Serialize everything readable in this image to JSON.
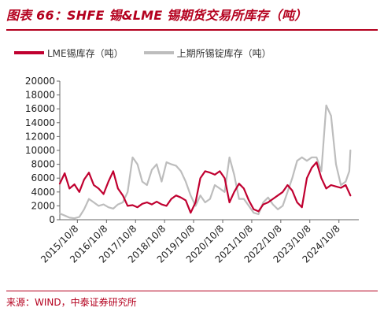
{
  "title": "图表 66：SHFE 锡&LME 锡期货交易所库存（吨）",
  "source": "来源：WIND，中泰证券研究所",
  "chart_data": {
    "type": "line",
    "title": "",
    "ylim": [
      0,
      20000
    ],
    "yticks": [
      0,
      2000,
      4000,
      6000,
      8000,
      10000,
      12000,
      14000,
      16000,
      18000,
      20000
    ],
    "yticklabels": [
      "0",
      "2000",
      "4000",
      "6000",
      "8000",
      "10000",
      "12000",
      "14000",
      "16000",
      "18000",
      "20000"
    ],
    "xlim": [
      "2015-03-01",
      "2025-06-15"
    ],
    "xticks": [
      "2015-10-08",
      "2016-10-08",
      "2017-10-08",
      "2018-10-08",
      "2019-10-08",
      "2020-10-08",
      "2021-10-08",
      "2022-10-08",
      "2023-10-08",
      "2024-10-08"
    ],
    "xticklabels": [
      "2015/10/8",
      "2016/10/8",
      "2017/10/8",
      "2018/10/8",
      "2019/10/8",
      "2020/10/8",
      "2021/10/8",
      "2022/10/8",
      "2023/10/8",
      "2024/10/8"
    ],
    "grid": false,
    "legend_position": "top",
    "series": [
      {
        "name": "LME锡库存（吨）",
        "color": "#c00030",
        "x": [
          "2015-03-01",
          "2015-05-01",
          "2015-07-01",
          "2015-09-01",
          "2015-11-01",
          "2016-01-01",
          "2016-03-01",
          "2016-05-01",
          "2016-07-01",
          "2016-09-01",
          "2016-11-01",
          "2017-01-01",
          "2017-03-01",
          "2017-05-01",
          "2017-07-01",
          "2017-09-01",
          "2017-11-01",
          "2018-01-01",
          "2018-03-01",
          "2018-05-01",
          "2018-07-01",
          "2018-09-01",
          "2018-11-01",
          "2019-01-01",
          "2019-03-01",
          "2019-05-01",
          "2019-07-01",
          "2019-09-01",
          "2019-11-01",
          "2020-01-01",
          "2020-03-01",
          "2020-05-01",
          "2020-07-01",
          "2020-09-01",
          "2020-11-01",
          "2021-01-01",
          "2021-03-01",
          "2021-05-01",
          "2021-07-01",
          "2021-09-01",
          "2021-11-01",
          "2022-01-01",
          "2022-03-01",
          "2022-05-01",
          "2022-07-01",
          "2022-09-01",
          "2022-11-01",
          "2023-01-01",
          "2023-03-01",
          "2023-05-01",
          "2023-07-01",
          "2023-09-01",
          "2023-11-01",
          "2024-01-01",
          "2024-03-01",
          "2024-05-01",
          "2024-07-01",
          "2024-09-01",
          "2024-11-01",
          "2025-01-01",
          "2025-03-01"
        ],
        "values": [
          5200,
          6700,
          4500,
          5100,
          4000,
          5800,
          6800,
          5000,
          4500,
          3700,
          5500,
          7000,
          4500,
          3500,
          2000,
          2100,
          1800,
          2300,
          2500,
          2200,
          2600,
          2200,
          2000,
          3000,
          3500,
          3200,
          2800,
          1000,
          2500,
          6000,
          7000,
          6800,
          6500,
          7000,
          6000,
          2500,
          4000,
          5200,
          4500,
          2800,
          1500,
          1200,
          2200,
          2500,
          3000,
          3500,
          4000,
          5000,
          4200,
          2500,
          1800,
          6000,
          7500,
          8300,
          6000,
          4500,
          5000,
          4800,
          4600,
          5000,
          3500
        ]
      },
      {
        "name": "上期所锡锭库存（吨）",
        "color": "#bdbdbd",
        "x": [
          "2015-03-01",
          "2015-05-01",
          "2015-07-01",
          "2015-09-01",
          "2015-11-01",
          "2016-01-01",
          "2016-03-01",
          "2016-05-01",
          "2016-07-01",
          "2016-09-01",
          "2016-11-01",
          "2017-01-01",
          "2017-03-01",
          "2017-05-01",
          "2017-07-01",
          "2017-09-01",
          "2017-11-01",
          "2018-01-01",
          "2018-03-01",
          "2018-05-01",
          "2018-07-01",
          "2018-09-01",
          "2018-11-01",
          "2019-01-01",
          "2019-03-01",
          "2019-05-01",
          "2019-07-01",
          "2019-09-01",
          "2019-11-01",
          "2020-01-01",
          "2020-03-01",
          "2020-05-01",
          "2020-07-01",
          "2020-09-01",
          "2020-11-01",
          "2021-01-01",
          "2021-03-01",
          "2021-05-01",
          "2021-07-01",
          "2021-09-01",
          "2021-11-01",
          "2022-01-01",
          "2022-03-01",
          "2022-05-01",
          "2022-07-01",
          "2022-09-01",
          "2022-11-01",
          "2023-01-01",
          "2023-03-01",
          "2023-05-01",
          "2023-07-01",
          "2023-09-01",
          "2023-11-01",
          "2024-01-01",
          "2024-03-01",
          "2024-05-01",
          "2024-07-01",
          "2024-09-01",
          "2024-11-01",
          "2025-01-01",
          "2025-02-15",
          "2025-03-01"
        ],
        "values": [
          900,
          600,
          300,
          200,
          400,
          1500,
          3000,
          2500,
          2000,
          2200,
          1800,
          1600,
          2200,
          2500,
          4000,
          9000,
          8000,
          5500,
          5000,
          7200,
          8000,
          5500,
          8300,
          8000,
          7800,
          7000,
          5500,
          3500,
          2000,
          3500,
          2500,
          3000,
          5000,
          4500,
          4000,
          9000,
          6500,
          3000,
          3000,
          2000,
          1000,
          800,
          2500,
          3200,
          2200,
          1500,
          2000,
          4000,
          6000,
          8500,
          9000,
          8500,
          9000,
          9000,
          7000,
          16500,
          15000,
          8000,
          5000,
          5500,
          7000,
          10000
        ]
      }
    ]
  }
}
